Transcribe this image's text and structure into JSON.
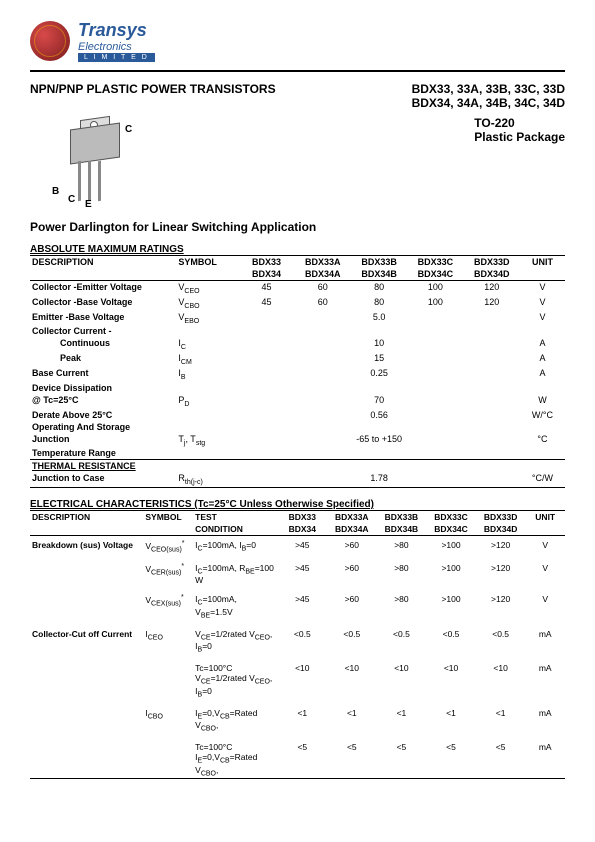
{
  "logo": {
    "name": "Transys",
    "sub": "Electronics",
    "bar": "L I M I T E D"
  },
  "title": {
    "left": "NPN/PNP PLASTIC POWER TRANSISTORS",
    "right1": "BDX33, 33A, 33B, 33C, 33D",
    "right2": "BDX34, 34A, 34B, 34C, 34D"
  },
  "package": {
    "line1": "TO-220",
    "line2": "Plastic Package"
  },
  "pins": {
    "c": "C",
    "b": "B",
    "e": "E",
    "c2": "C"
  },
  "subtitle": "Power Darlington for Linear Switching Application",
  "amr": {
    "heading": "ABSOLUTE MAXIMUM RATINGS",
    "cols": [
      "DESCRIPTION",
      "SYMBOL",
      "BDX33",
      "BDX33A",
      "BDX33B",
      "BDX33C",
      "BDX33D",
      "UNIT"
    ],
    "cols2": [
      "",
      "",
      "BDX34",
      "BDX34A",
      "BDX34B",
      "BDX34C",
      "BDX34D",
      ""
    ],
    "rows": [
      {
        "desc": "Collector -Emitter Voltage",
        "sym": "V_CEO",
        "v": [
          "45",
          "60",
          "80",
          "100",
          "120"
        ],
        "u": "V"
      },
      {
        "desc": "Collector -Base Voltage",
        "sym": "V_CBO",
        "v": [
          "45",
          "60",
          "80",
          "100",
          "120"
        ],
        "u": "V"
      },
      {
        "desc": "Emitter -Base Voltage",
        "sym": "V_EBO",
        "span": "5.0",
        "u": "V"
      },
      {
        "desc": "Collector Current -",
        "sym": "",
        "span": "",
        "u": ""
      },
      {
        "desc": "Continuous",
        "indent": true,
        "sym": "I_C",
        "span": "10",
        "u": "A"
      },
      {
        "desc": "Peak",
        "indent": true,
        "sym": "I_CM",
        "span": "15",
        "u": "A"
      },
      {
        "desc": "Base Current",
        "sym": "I_B",
        "span": "0.25",
        "u": "A"
      },
      {
        "desc": "Device Dissipation",
        "sym": "",
        "span": "",
        "u": ""
      },
      {
        "desc": "@ Tc=25°C",
        "sym": "P_D",
        "span": "70",
        "u": "W"
      },
      {
        "desc": "Derate Above 25°C",
        "sym": "",
        "span": "0.56",
        "u": "W/°C"
      },
      {
        "desc": "Operating And Storage",
        "sym": "",
        "span": "",
        "u": ""
      },
      {
        "desc": "Junction",
        "sym": "T_j, T_stg",
        "span": "-65 to +150",
        "u": "°C"
      },
      {
        "desc": "Temperature Range",
        "sym": "",
        "span": "",
        "u": ""
      }
    ],
    "thermal": {
      "heading": "THERMAL RESISTANCE",
      "desc": "Junction to Case",
      "sym": "R_th(j-c)",
      "val": "1.78",
      "u": "°C/W"
    }
  },
  "elec": {
    "heading": "ELECTRICAL CHARACTERISTICS (Tc=25°C Unless Otherwise Specified)",
    "cols": [
      "DESCRIPTION",
      "SYMBOL",
      "TEST",
      "BDX33",
      "BDX33A",
      "BDX33B",
      "BDX33C",
      "BDX33D",
      "UNIT"
    ],
    "cols_cond": "CONDITION",
    "cols2": [
      "",
      "",
      "",
      "BDX34",
      "BDX34A",
      "BDX34B",
      "BDX34C",
      "BDX34D",
      ""
    ],
    "rows": [
      {
        "desc": "Breakdown (sus) Voltage",
        "sym": "V_CEO(sus)*",
        "cond": "I_C=100mA, I_B=0",
        "v": [
          ">45",
          ">60",
          ">80",
          ">100",
          ">120"
        ],
        "u": "V"
      },
      {
        "desc": "",
        "sym": "V_CER(sus)*",
        "cond": "I_C=100mA, R_BE=100 W",
        "v": [
          ">45",
          ">60",
          ">80",
          ">100",
          ">120"
        ],
        "u": "V"
      },
      {
        "desc": "",
        "sym": "V_CEX(sus)*",
        "cond": "I_C=100mA, V_BE=1.5V",
        "v": [
          ">45",
          ">60",
          ">80",
          ">100",
          ">120"
        ],
        "u": "V"
      },
      {
        "desc": "Collector-Cut off Current",
        "sym": "I_CEO",
        "cond": "V_CE=1/2rated V_CEO, I_B=0",
        "v": [
          "<0.5",
          "<0.5",
          "<0.5",
          "<0.5",
          "<0.5"
        ],
        "u": "mA"
      },
      {
        "desc": "",
        "sym": "",
        "cond": "Tc=100°C V_CE=1/2rated V_CEO, I_B=0",
        "v": [
          "<10",
          "<10",
          "<10",
          "<10",
          "<10"
        ],
        "u": "mA"
      },
      {
        "desc": "",
        "sym": "I_CBO",
        "cond": "I_E=0,V_CB=Rated V_CBO,",
        "v": [
          "<1",
          "<1",
          "<1",
          "<1",
          "<1"
        ],
        "u": "mA"
      },
      {
        "desc": "",
        "sym": "",
        "cond": "Tc=100°C I_E=0,V_CB=Rated V_CBO,",
        "v": [
          "<5",
          "<5",
          "<5",
          "<5",
          "<5"
        ],
        "u": "mA"
      }
    ]
  }
}
